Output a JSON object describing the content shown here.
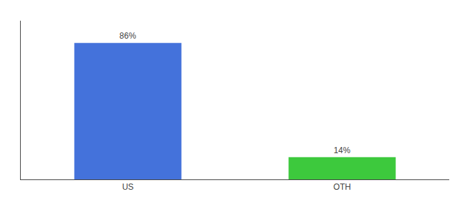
{
  "chart_data": {
    "type": "bar",
    "categories": [
      "US",
      "OTH"
    ],
    "values": [
      86,
      14
    ],
    "value_labels": [
      "86%",
      "14%"
    ],
    "data_labels": true,
    "colors": [
      "#4472db",
      "#3dc93d"
    ],
    "ylim": [
      0,
      100
    ],
    "yticks": [],
    "tick_labels": "x",
    "grid": false
  }
}
